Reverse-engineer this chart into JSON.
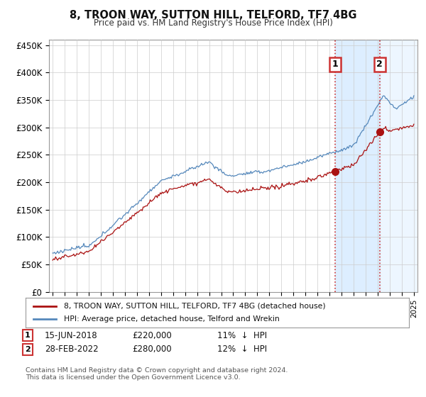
{
  "title": "8, TROON WAY, SUTTON HILL, TELFORD, TF7 4BG",
  "subtitle": "Price paid vs. HM Land Registry's House Price Index (HPI)",
  "ylabel_ticks": [
    "£0",
    "£50K",
    "£100K",
    "£150K",
    "£200K",
    "£250K",
    "£300K",
    "£350K",
    "£400K",
    "£450K"
  ],
  "ytick_values": [
    0,
    50000,
    100000,
    150000,
    200000,
    250000,
    300000,
    350000,
    400000,
    450000
  ],
  "hpi_color": "#5588bb",
  "price_color": "#aa1111",
  "vline_color": "#cc3333",
  "shade_color": "#ddeeff",
  "marker1_date": 2018.45,
  "marker1_price": 220000,
  "marker2_date": 2022.16,
  "marker2_price": 280000,
  "legend_label1": "8, TROON WAY, SUTTON HILL, TELFORD, TF7 4BG (detached house)",
  "legend_label2": "HPI: Average price, detached house, Telford and Wrekin",
  "footer": "Contains HM Land Registry data © Crown copyright and database right 2024.\nThis data is licensed under the Open Government Licence v3.0.",
  "bg_color": "#ffffff",
  "grid_color": "#cccccc"
}
